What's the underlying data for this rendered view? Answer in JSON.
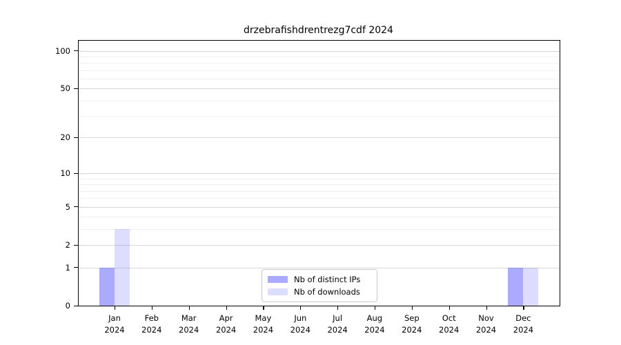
{
  "chart_data": {
    "type": "bar",
    "title": "drzebrafishdrentrezg7cdf 2024",
    "categories": [
      "Jan",
      "Feb",
      "Mar",
      "Apr",
      "May",
      "Jun",
      "Jul",
      "Aug",
      "Sep",
      "Oct",
      "Nov",
      "Dec"
    ],
    "xtick_second_line": "2024",
    "series": [
      {
        "name": "Nb of distinct IPs",
        "color": "rgba(85,85,255,0.5)",
        "values": [
          1,
          0,
          0,
          0,
          0,
          0,
          0,
          0,
          0,
          0,
          0,
          1
        ]
      },
      {
        "name": "Nb of downloads",
        "color": "rgba(85,85,255,0.2)",
        "values": [
          3,
          0,
          0,
          0,
          0,
          0,
          0,
          0,
          0,
          0,
          0,
          1
        ]
      }
    ],
    "yscale": "log1p",
    "ylim": [
      0,
      120
    ],
    "yticks": [
      0,
      1,
      2,
      5,
      10,
      20,
      50,
      100
    ],
    "yticks_minor": [
      3,
      4,
      6,
      7,
      8,
      9,
      30,
      40,
      60,
      70,
      80,
      90
    ],
    "grid": "horizontal",
    "legend_position": "bottom-center",
    "colors": {
      "axis": "#000000",
      "grid_major": "#d7d7d7",
      "grid_minor": "#f0f0f0",
      "legend_border": "#c9c9c9",
      "bar_distinct_ips": "rgba(85,85,255,0.5)",
      "bar_downloads": "rgba(85,85,255,0.2)"
    }
  }
}
